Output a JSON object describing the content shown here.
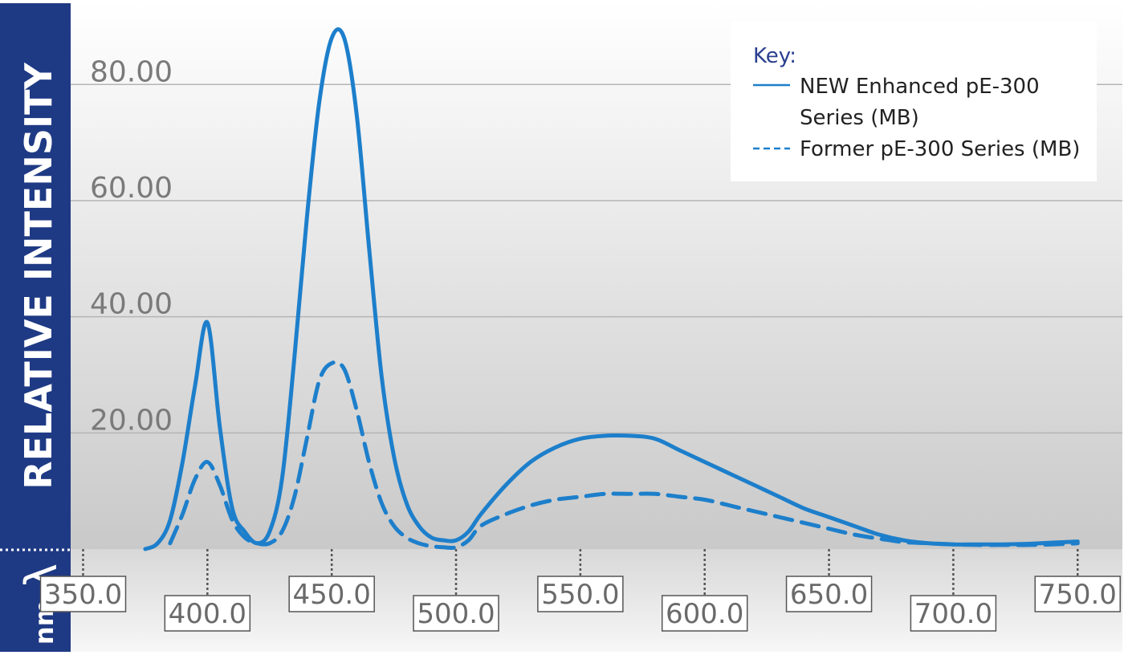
{
  "chart_data": {
    "type": "line",
    "ylabel": "RELATIVE INTENSITY",
    "xunit": "nm",
    "xsymbol": "λ",
    "xlim": [
      345,
      768
    ],
    "ylim": [
      0,
      94
    ],
    "yticks": [
      20,
      40,
      60,
      80
    ],
    "ytick_labels": [
      "20.00",
      "40.00",
      "60.00",
      "80.00"
    ],
    "xticks": [
      350,
      400,
      450,
      500,
      550,
      600,
      650,
      700,
      750
    ],
    "xtick_labels": [
      "350.0",
      "400.0",
      "450.0",
      "500.0",
      "550.0",
      "600.0",
      "650.0",
      "700.0",
      "750.0"
    ],
    "grid": "horizontal",
    "legend": {
      "title": "Key:",
      "position": "top-right",
      "entries": [
        {
          "label_lines": [
            "NEW Enhanced pE-300",
            "Series (MB)"
          ],
          "style": "solid"
        },
        {
          "label_lines": [
            "Former pE-300 Series (MB)"
          ],
          "style": "dashed"
        }
      ]
    },
    "series": [
      {
        "name": "NEW Enhanced pE-300 Series (MB)",
        "color": "#1d7fcb",
        "style": "solid",
        "x": [
          375,
          380,
          385,
          390,
          395,
          400,
          405,
          410,
          415,
          420,
          425,
          430,
          435,
          440,
          445,
          450,
          455,
          460,
          465,
          470,
          475,
          480,
          485,
          490,
          495,
          500,
          505,
          510,
          520,
          530,
          540,
          550,
          560,
          570,
          580,
          590,
          600,
          610,
          620,
          630,
          640,
          650,
          660,
          670,
          680,
          690,
          700,
          710,
          720,
          730,
          740,
          750
        ],
        "y": [
          0,
          1,
          5,
          15,
          28,
          39,
          21,
          7,
          3,
          1,
          3,
          12,
          33,
          57,
          77,
          88,
          88,
          75,
          52,
          30,
          16,
          8,
          4,
          2,
          1.5,
          1.5,
          3,
          6,
          11,
          15,
          17.5,
          19,
          19.5,
          19.5,
          19,
          17,
          15,
          13,
          11,
          9,
          7,
          5.5,
          4,
          2.5,
          1.5,
          1,
          0.8,
          0.8,
          0.8,
          0.9,
          1.1,
          1.3
        ]
      },
      {
        "name": "Former pE-300 Series (MB)",
        "color": "#1d7fcb",
        "style": "dashed",
        "x": [
          385,
          390,
          395,
          400,
          405,
          410,
          415,
          420,
          425,
          430,
          435,
          440,
          445,
          450,
          455,
          460,
          465,
          470,
          475,
          480,
          485,
          490,
          495,
          500,
          505,
          510,
          520,
          530,
          540,
          550,
          560,
          570,
          580,
          590,
          600,
          610,
          620,
          630,
          640,
          650,
          660,
          670,
          680,
          690,
          700,
          710,
          720,
          730,
          740,
          750
        ],
        "y": [
          1,
          6,
          12,
          15,
          11,
          5,
          2,
          1,
          1,
          3,
          9,
          19,
          29,
          32,
          31,
          24,
          15,
          8,
          4,
          2,
          1,
          0.5,
          0.3,
          0.3,
          1.5,
          4,
          6,
          7.5,
          8.5,
          9,
          9.5,
          9.5,
          9.5,
          9,
          8.5,
          7.5,
          6.5,
          5.5,
          4.5,
          3.5,
          2.5,
          1.8,
          1.2,
          1,
          0.8,
          0.7,
          0.7,
          0.7,
          0.8,
          1
        ]
      }
    ]
  }
}
